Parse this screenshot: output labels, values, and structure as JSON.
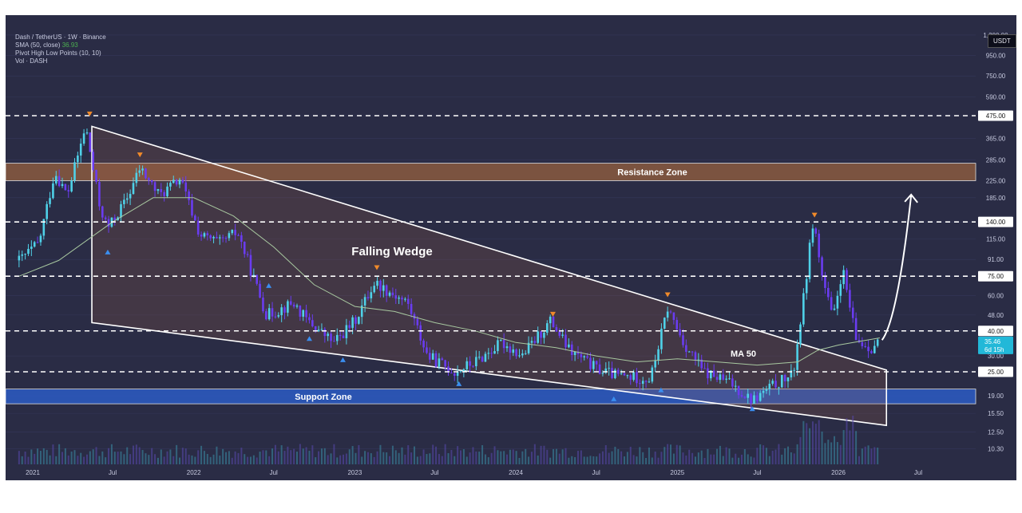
{
  "legend": {
    "title": "Dash / TetherUS · 1W · Binance",
    "sma_label": "SMA (50, close)",
    "sma_value": "36.93",
    "pivot_label": "Pivot High Low Points (10, 10)",
    "vol_label": "Vol · DASH"
  },
  "currency": "USDT",
  "colors": {
    "background": "#2a2c45",
    "candle_up": "#4fd1e8",
    "candle_down": "#6a3cf0",
    "sma": "#a8c8a0",
    "resistance_zone": "#8a5a40",
    "support_zone": "#2b5cc4",
    "pivot_high": "#f08a2a",
    "pivot_low": "#3a8ef0"
  },
  "chart_data": {
    "type": "candlestick",
    "title": "Dash / TetherUS · 1W · Binance",
    "y_scale": "log",
    "ylim": [
      8.5,
      1450
    ],
    "y_ticks": [
      "1,200.00",
      "950.00",
      "750.00",
      "590.00",
      "475.00",
      "365.00",
      "285.00",
      "225.00",
      "185.00",
      "140.00",
      "115.00",
      "91.00",
      "75.00",
      "60.00",
      "48.00",
      "40.00",
      "30.00",
      "25.00",
      "19.00",
      "15.50",
      "12.50",
      "10.30"
    ],
    "highlighted_ticks": [
      "475.00",
      "140.00",
      "75.00",
      "40.00",
      "25.00"
    ],
    "x_ticks": [
      "2021",
      "Jul",
      "2022",
      "Jul",
      "2023",
      "Jul",
      "2024",
      "Jul",
      "2025",
      "Jul",
      "2026",
      "Jul"
    ],
    "last_price": "35.46",
    "countdown": "6d 15h",
    "horizontal_levels": [
      475,
      140,
      75,
      40,
      25
    ],
    "zones": [
      {
        "label": "Resistance Zone",
        "low": 225,
        "high": 275
      },
      {
        "label": "Support Zone",
        "low": 17.3,
        "high": 20.5
      }
    ],
    "annotations": [
      "Falling Wedge",
      "MA 50"
    ],
    "price_path": [
      {
        "date": "2020-12-01",
        "price": 90
      },
      {
        "date": "2021-01-15",
        "price": 110
      },
      {
        "date": "2021-02-20",
        "price": 250
      },
      {
        "date": "2021-03-20",
        "price": 190
      },
      {
        "date": "2021-05-01",
        "price": 420
      },
      {
        "date": "2021-06-01",
        "price": 170
      },
      {
        "date": "2021-06-20",
        "price": 130
      },
      {
        "date": "2021-08-01",
        "price": 180
      },
      {
        "date": "2021-09-01",
        "price": 260
      },
      {
        "date": "2021-10-15",
        "price": 190
      },
      {
        "date": "2021-12-01",
        "price": 230
      },
      {
        "date": "2022-01-15",
        "price": 120
      },
      {
        "date": "2022-03-01",
        "price": 110
      },
      {
        "date": "2022-04-10",
        "price": 125
      },
      {
        "date": "2022-06-15",
        "price": 48
      },
      {
        "date": "2022-08-15",
        "price": 55
      },
      {
        "date": "2022-09-15",
        "price": 45
      },
      {
        "date": "2022-11-15",
        "price": 35
      },
      {
        "date": "2023-01-01",
        "price": 45
      },
      {
        "date": "2023-02-15",
        "price": 70
      },
      {
        "date": "2023-05-01",
        "price": 55
      },
      {
        "date": "2023-06-15",
        "price": 30
      },
      {
        "date": "2023-08-15",
        "price": 25
      },
      {
        "date": "2023-10-01",
        "price": 28
      },
      {
        "date": "2023-12-01",
        "price": 35
      },
      {
        "date": "2024-01-15",
        "price": 30
      },
      {
        "date": "2024-03-20",
        "price": 45
      },
      {
        "date": "2024-05-01",
        "price": 32
      },
      {
        "date": "2024-07-01",
        "price": 26
      },
      {
        "date": "2024-08-15",
        "price": 24
      },
      {
        "date": "2024-11-01",
        "price": 23
      },
      {
        "date": "2024-12-10",
        "price": 52
      },
      {
        "date": "2025-01-15",
        "price": 35
      },
      {
        "date": "2025-03-01",
        "price": 25
      },
      {
        "date": "2025-05-01",
        "price": 22
      },
      {
        "date": "2025-06-20",
        "price": 18
      },
      {
        "date": "2025-08-15",
        "price": 22
      },
      {
        "date": "2025-09-20",
        "price": 24
      },
      {
        "date": "2025-10-15",
        "price": 60
      },
      {
        "date": "2025-11-05",
        "price": 145
      },
      {
        "date": "2025-11-25",
        "price": 75
      },
      {
        "date": "2025-12-20",
        "price": 45
      },
      {
        "date": "2026-01-10",
        "price": 82
      },
      {
        "date": "2026-02-10",
        "price": 36
      },
      {
        "date": "2026-03-15",
        "price": 33
      },
      {
        "date": "2026-04-05",
        "price": 35.46
      }
    ],
    "sma_path": [
      {
        "date": "2020-12-01",
        "price": 75
      },
      {
        "date": "2021-03-01",
        "price": 90
      },
      {
        "date": "2021-07-01",
        "price": 140
      },
      {
        "date": "2021-10-01",
        "price": 185
      },
      {
        "date": "2022-01-01",
        "price": 185
      },
      {
        "date": "2022-04-01",
        "price": 150
      },
      {
        "date": "2022-07-01",
        "price": 105
      },
      {
        "date": "2022-10-01",
        "price": 68
      },
      {
        "date": "2023-01-01",
        "price": 53
      },
      {
        "date": "2023-04-01",
        "price": 50
      },
      {
        "date": "2023-07-01",
        "price": 44
      },
      {
        "date": "2023-10-01",
        "price": 40
      },
      {
        "date": "2024-01-01",
        "price": 35
      },
      {
        "date": "2024-04-01",
        "price": 33
      },
      {
        "date": "2024-07-01",
        "price": 30
      },
      {
        "date": "2024-10-01",
        "price": 28
      },
      {
        "date": "2025-01-01",
        "price": 29
      },
      {
        "date": "2025-04-01",
        "price": 28
      },
      {
        "date": "2025-07-01",
        "price": 27
      },
      {
        "date": "2025-10-01",
        "price": 28
      },
      {
        "date": "2025-11-15",
        "price": 32
      },
      {
        "date": "2026-01-01",
        "price": 34
      },
      {
        "date": "2026-04-05",
        "price": 36.93
      }
    ],
    "wedge": {
      "upper": [
        {
          "date": "2021-05-15",
          "price": 420
        },
        {
          "date": "2026-04-20",
          "price": 25.5
        }
      ],
      "lower": [
        {
          "date": "2021-05-15",
          "price": 44
        },
        {
          "date": "2026-04-20",
          "price": 13.5
        }
      ]
    },
    "pivot_highs": [
      {
        "date": "2021-05-10",
        "price": 480
      },
      {
        "date": "2021-09-01",
        "price": 300
      },
      {
        "date": "2023-02-20",
        "price": 82
      },
      {
        "date": "2024-03-25",
        "price": 48
      },
      {
        "date": "2024-12-10",
        "price": 60
      },
      {
        "date": "2025-11-08",
        "price": 150
      }
    ],
    "pivot_lows": [
      {
        "date": "2021-06-20",
        "price": 100
      },
      {
        "date": "2022-06-20",
        "price": 68
      },
      {
        "date": "2022-09-20",
        "price": 37
      },
      {
        "date": "2022-12-05",
        "price": 29
      },
      {
        "date": "2023-08-25",
        "price": 22
      },
      {
        "date": "2024-08-10",
        "price": 18.5
      },
      {
        "date": "2024-11-25",
        "price": 20.5
      },
      {
        "date": "2025-06-20",
        "price": 16.5
      }
    ],
    "projection": [
      {
        "date": "2026-04-10",
        "price": 36
      },
      {
        "date": "2026-05-15",
        "price": 60
      },
      {
        "date": "2026-06-15",
        "price": 190
      }
    ]
  }
}
